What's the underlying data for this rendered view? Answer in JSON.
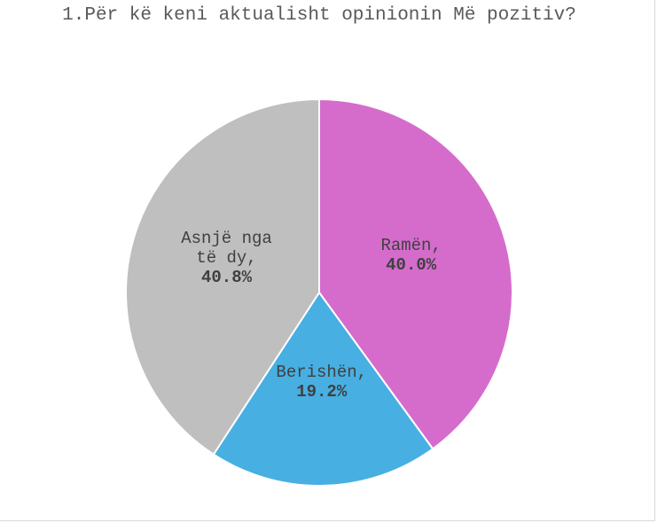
{
  "chart_data": {
    "type": "pie",
    "title": "1.Për kë keni aktualisht opinionin Më pozitiv?",
    "categories": [
      "Ramën,",
      "Berishën,",
      "Asnjë nga të dy,"
    ],
    "values": [
      40.0,
      19.2,
      40.8
    ],
    "value_labels": [
      "40.0%",
      "19.2%",
      "40.8%"
    ],
    "colors": [
      "#d56ccc",
      "#47afe2",
      "#bfbfbf"
    ]
  }
}
